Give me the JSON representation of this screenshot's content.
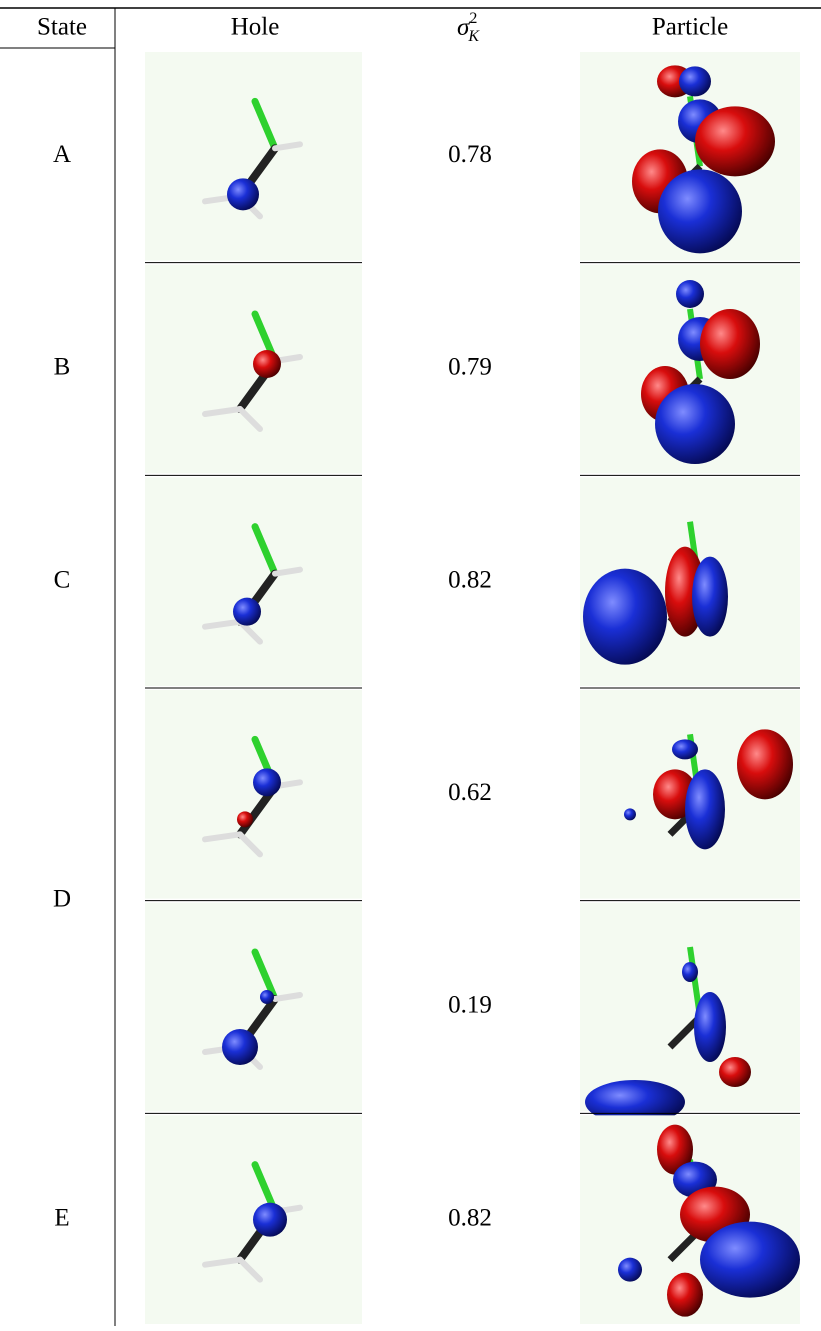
{
  "table": {
    "header": [
      "State",
      "Hole",
      {
        "symbol": "σ",
        "sup": "2",
        "sub": "K"
      },
      "Particle"
    ],
    "rows": [
      {
        "state": "A",
        "entries": [
          "0.78"
        ]
      },
      {
        "state": "B",
        "entries": [
          "0.79"
        ]
      },
      {
        "state": "C",
        "entries": [
          "0.82"
        ]
      },
      {
        "state": "D",
        "entries": [
          "0.62",
          "0.19"
        ]
      },
      {
        "state": "E",
        "entries": [
          "0.82"
        ]
      }
    ]
  }
}
